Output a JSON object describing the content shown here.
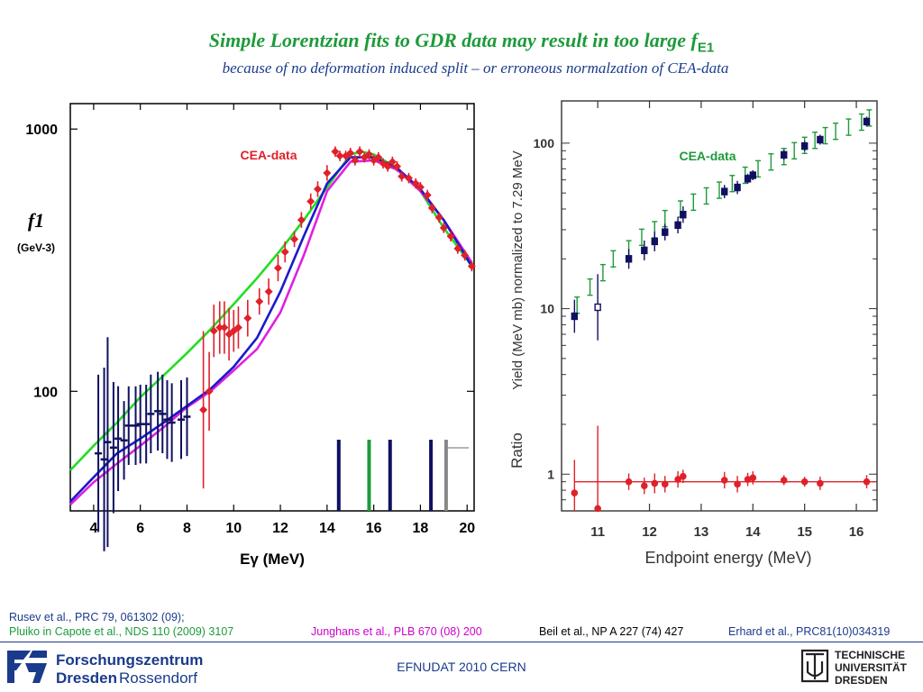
{
  "title": {
    "main": "Simple Lorentzian fits to GDR data may result in too large f",
    "sub": "E1",
    "subtitle": "because of no deformation induced split  –  or erroneous normalzation of CEA-data"
  },
  "colors": {
    "green": "#1e9a3a",
    "blue": "#1a3a8c",
    "red": "#e0202a",
    "magenta": "#e020e0",
    "lime": "#22dd22",
    "navy": "#101060",
    "darkred": "#cc1111"
  },
  "refs": [
    {
      "text": "Rusev et al., PRC 79, 061302 (09);",
      "color": "#1a3a8c"
    },
    {
      "text": "Pluiko in Capote et al., NDS 110 (2009) 3107",
      "color": "#1e9a3a"
    },
    {
      "text": "Junghans et al., PLB  670 (08) 200",
      "color": "#cc00cc"
    },
    {
      "text": "Beil et al., NP A 227 (74) 427",
      "color": "#000000"
    },
    {
      "text": "Erhard et al., PRC81(10)034319",
      "color": "#1a3a8c"
    }
  ],
  "footer": "EFNUDAT 2010 CERN",
  "logo_fz": {
    "name": "Forschungszentrum",
    "city": "Dresden",
    "suburb": "Rossendorf"
  },
  "logo_tud": {
    "line1": "TECHNISCHE",
    "line2": "UNIVERSITÄT",
    "line3": "DRESDEN"
  },
  "chart_data": [
    {
      "type": "scatter",
      "xlabel": "Eγ (MeV)",
      "ylabel": "f1",
      "ylabel_unit": "(GeV-3)",
      "xlim": [
        3,
        20.3
      ],
      "x_ticks": [
        4,
        6,
        8,
        10,
        12,
        14,
        16,
        18,
        20
      ],
      "y_scale": "log",
      "ylim": [
        35,
        1250
      ],
      "y_ticks": [
        100,
        1000
      ],
      "annotation": "CEA-data",
      "series": [
        {
          "name": "Rusev",
          "marker": "cross",
          "color": "#101060",
          "x": [
            4.2,
            4.45,
            4.6,
            4.85,
            5.05,
            5.3,
            5.5,
            5.8,
            6.0,
            6.25,
            6.45,
            6.75,
            6.95,
            7.15,
            7.35,
            7.75,
            8.0
          ],
          "y": [
            58,
            55,
            64,
            61,
            66,
            65,
            74,
            74,
            75,
            75,
            82,
            84,
            82,
            78,
            76,
            78,
            80
          ],
          "err": [
            0.3,
            0.35,
            0.4,
            0.25,
            0.2,
            0.15,
            0.15,
            0.15,
            0.15,
            0.15,
            0.15,
            0.15,
            0.15,
            0.15,
            0.15,
            0.15,
            0.15
          ]
        },
        {
          "name": "CEA",
          "marker": "diamond",
          "color": "#e0202a",
          "x": [
            8.7,
            8.95,
            9.15,
            9.4,
            9.6,
            9.8,
            10.0,
            10.2,
            10.6,
            11.1,
            11.5,
            11.9,
            12.2,
            12.6,
            12.9,
            13.3,
            13.6,
            14.0,
            14.35,
            14.55,
            14.8,
            15.0,
            15.2,
            15.4,
            15.6,
            15.8,
            16.0,
            16.2,
            16.4,
            16.6,
            16.8,
            17.0,
            17.2,
            17.5,
            17.8,
            18.0,
            18.3,
            18.5,
            18.8,
            19.0,
            19.3,
            19.6,
            19.9,
            20.2
          ],
          "y": [
            85,
            100,
            170,
            175,
            175,
            165,
            170,
            175,
            190,
            220,
            240,
            295,
            340,
            380,
            450,
            530,
            590,
            680,
            820,
            790,
            790,
            810,
            760,
            820,
            780,
            800,
            760,
            780,
            740,
            720,
            750,
            720,
            660,
            650,
            620,
            600,
            560,
            500,
            460,
            420,
            390,
            350,
            330,
            300
          ],
          "err": [
            0.3,
            0.15,
            0.1,
            0.1,
            0.1,
            0.1,
            0.08,
            0.08,
            0.07,
            0.05,
            0.05,
            0.05,
            0.04,
            0.03,
            0.03,
            0.03,
            0.03,
            0.03,
            0.02,
            0.02,
            0.02,
            0.02,
            0.02,
            0.02,
            0.02,
            0.02,
            0.02,
            0.02,
            0.02,
            0.02,
            0.02,
            0.02,
            0.02,
            0.02,
            0.02,
            0.02,
            0.02,
            0.02,
            0.02,
            0.02,
            0.02,
            0.02,
            0.02,
            0.02
          ]
        }
      ],
      "fits": [
        {
          "color": "#22dd22",
          "x": [
            3,
            4,
            5,
            6,
            7,
            8,
            9,
            10,
            11,
            12,
            13,
            14,
            15,
            15.5,
            16,
            17,
            18,
            19,
            20.2
          ],
          "y": [
            50,
            62,
            76,
            95,
            115,
            140,
            172,
            215,
            270,
            345,
            450,
            600,
            800,
            820,
            800,
            710,
            580,
            420,
            300
          ]
        },
        {
          "color": "#e020e0",
          "x": [
            3,
            4,
            5,
            6,
            7,
            8,
            9,
            10,
            11,
            12,
            13,
            14,
            15,
            16,
            17,
            18,
            19,
            20.2
          ],
          "y": [
            37,
            45,
            53,
            62,
            73,
            87,
            100,
            120,
            145,
            200,
            330,
            580,
            750,
            760,
            700,
            580,
            450,
            310
          ]
        },
        {
          "color": "#1a1acc",
          "x": [
            3,
            4,
            5,
            6,
            7,
            8,
            9,
            10,
            11,
            12,
            13,
            14,
            15,
            16,
            17,
            18,
            19,
            20.2
          ],
          "y": [
            38,
            47,
            58,
            66,
            76,
            88,
            102,
            124,
            160,
            240,
            390,
            620,
            780,
            780,
            710,
            590,
            450,
            300
          ]
        }
      ],
      "vertical_lines": [
        {
          "x": 14.5,
          "color": "#101060"
        },
        {
          "x": 15.8,
          "color": "#1e9a3a"
        },
        {
          "x": 16.7,
          "color": "#101060"
        },
        {
          "x": 18.45,
          "color": "#101060"
        },
        {
          "x": 19.1,
          "color": "#888888"
        }
      ]
    },
    {
      "type": "scatter",
      "xlabel": "Endpoint energy (MeV)",
      "ylabel": "Yield (MeV mb) normalized to 7.29 MeV",
      "ylabel2": "Ratio",
      "xlim": [
        10.3,
        16.4
      ],
      "x_ticks": [
        11,
        12,
        13,
        14,
        15,
        16
      ],
      "y_scale": "log",
      "ylim": [
        0.6,
        180
      ],
      "y_ticks": [
        1,
        10,
        100
      ],
      "annotation": "CEA-data",
      "series": [
        {
          "name": "CEA yield",
          "marker": "cross",
          "color": "#1e9a3a",
          "x": [
            10.6,
            10.85,
            11.1,
            11.3,
            11.6,
            11.85,
            12.1,
            12.3,
            12.6,
            12.85,
            13.1,
            13.35,
            13.6,
            13.85,
            14.1,
            14.35,
            14.6,
            14.8,
            15.0,
            15.2,
            15.4,
            15.6,
            15.85,
            16.1,
            16.25
          ],
          "y": [
            10.5,
            13.5,
            16.5,
            20.0,
            23.0,
            27.0,
            30.0,
            35.0,
            40.0,
            44.0,
            48.0,
            52.0,
            57.0,
            64.0,
            70.0,
            77.0,
            83.0,
            90.0,
            97.0,
            104.0,
            111.0,
            118.0,
            125.0,
            134.0,
            142.0
          ]
        },
        {
          "name": "Yield",
          "marker": "square",
          "color": "#101060",
          "x": [
            10.55,
            11.0,
            11.6,
            11.9,
            12.1,
            12.3,
            12.55,
            12.65,
            13.45,
            13.7,
            13.9,
            14.0,
            14.6,
            15.0,
            15.3,
            16.2
          ],
          "y": [
            9.0,
            10.2,
            20.0,
            22.5,
            25.5,
            29.0,
            32.0,
            37.0,
            51.0,
            54.0,
            61.0,
            64.0,
            85.0,
            96.0,
            105.0,
            135.0
          ],
          "err": [
            0.1,
            0.2,
            0.06,
            0.06,
            0.06,
            0.05,
            0.05,
            0.05,
            0.04,
            0.04,
            0.03,
            0.03,
            0.03,
            0.03,
            0.03,
            0.03
          ]
        },
        {
          "name": "Ratio",
          "marker": "circle",
          "color": "#e0202a",
          "x": [
            10.55,
            11.0,
            11.6,
            11.9,
            12.1,
            12.3,
            12.55,
            12.65,
            13.45,
            13.7,
            13.9,
            14.0,
            14.6,
            15.0,
            15.3,
            16.2
          ],
          "y": [
            0.77,
            0.62,
            0.9,
            0.85,
            0.88,
            0.87,
            0.93,
            0.97,
            0.92,
            0.87,
            0.93,
            0.95,
            0.92,
            0.9,
            0.88,
            0.9
          ],
          "err": [
            0.2,
            0.5,
            0.05,
            0.05,
            0.06,
            0.05,
            0.05,
            0.04,
            0.05,
            0.05,
            0.04,
            0.04,
            0.03,
            0.03,
            0.04,
            0.04
          ]
        }
      ],
      "ratio_line": 0.9
    }
  ]
}
